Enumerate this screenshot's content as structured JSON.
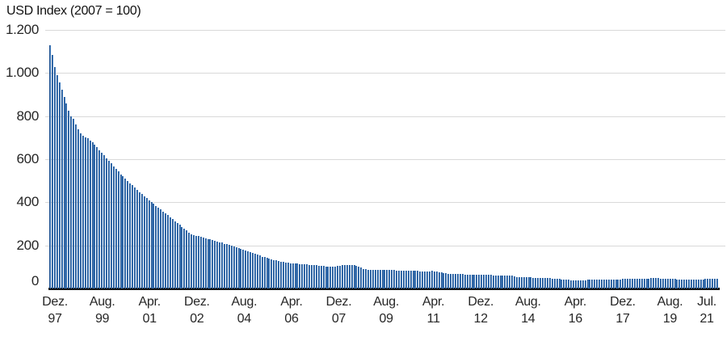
{
  "title": "USD Index (2007 = 100)",
  "colors": {
    "bar_dark": "#0e3a75",
    "bar_mid": "#2a66ad",
    "bar_light": "#6fa5d8",
    "gridline": "#d9d9d9",
    "axis_line": "#141414",
    "text": "#262626"
  },
  "chart_data": {
    "type": "bar",
    "title": "USD Index (2007 = 100)",
    "frequency": "monthly",
    "start": "Dez. 97",
    "end": "Jul. 21",
    "ylim": [
      0,
      1200
    ],
    "y_tick_step": 200,
    "y_tick_labels": [
      "0",
      "200",
      "400",
      "600",
      "800",
      "1.000",
      "1.200"
    ],
    "grid": "horizontal-only",
    "legend": "none",
    "x_ticks": [
      {
        "line1": "Dez.",
        "line2": "97",
        "month": 0
      },
      {
        "line1": "Aug.",
        "line2": "99",
        "month": 20
      },
      {
        "line1": "Apr.",
        "line2": "01",
        "month": 40
      },
      {
        "line1": "Dez.",
        "line2": "02",
        "month": 60
      },
      {
        "line1": "Aug.",
        "line2": "04",
        "month": 80
      },
      {
        "line1": "Apr.",
        "line2": "06",
        "month": 100
      },
      {
        "line1": "Dez.",
        "line2": "07",
        "month": 120
      },
      {
        "line1": "Aug.",
        "line2": "09",
        "month": 140
      },
      {
        "line1": "Apr.",
        "line2": "11",
        "month": 160
      },
      {
        "line1": "Dez.",
        "line2": "12",
        "month": 180
      },
      {
        "line1": "Aug.",
        "line2": "14",
        "month": 200
      },
      {
        "line1": "Apr.",
        "line2": "16",
        "month": 220
      },
      {
        "line1": "Dez.",
        "line2": "17",
        "month": 240
      },
      {
        "line1": "Aug.",
        "line2": "19",
        "month": 260
      },
      {
        "line1": "Jul.",
        "line2": "21",
        "month": 283
      }
    ],
    "values": [
      1130,
      1085,
      1028,
      990,
      955,
      922,
      890,
      858,
      826,
      800,
      786,
      760,
      737,
      720,
      710,
      703,
      696,
      687,
      677,
      666,
      655,
      642,
      630,
      617,
      605,
      592,
      580,
      567,
      555,
      542,
      530,
      520,
      509,
      499,
      489,
      479,
      468,
      458,
      448,
      438,
      428,
      419,
      410,
      401,
      392,
      384,
      375,
      366,
      357,
      349,
      340,
      331,
      322,
      313,
      304,
      295,
      286,
      277,
      269,
      260,
      251,
      248,
      245,
      242,
      239,
      236,
      233,
      230,
      227,
      225,
      222,
      219,
      215,
      212,
      208,
      205,
      202,
      198,
      195,
      191,
      188,
      184,
      180,
      176,
      172,
      168,
      164,
      160,
      156,
      152,
      148,
      145,
      142,
      139,
      136,
      133,
      130,
      127,
      125,
      122,
      120,
      119,
      118,
      117,
      116,
      115,
      114,
      113,
      112,
      111,
      110,
      109,
      108,
      107,
      106,
      105,
      104,
      103,
      102,
      102,
      101,
      103,
      105,
      106,
      108,
      109,
      110,
      110,
      109,
      107,
      105,
      103,
      96,
      90,
      89,
      88,
      88,
      87,
      87,
      86,
      86,
      86,
      86,
      85,
      85,
      85,
      85,
      84,
      84,
      84,
      84,
      83,
      83,
      82,
      82,
      81,
      81,
      80,
      80,
      79,
      79,
      80,
      81,
      80,
      78,
      76,
      74,
      72,
      71,
      69,
      68,
      68,
      67,
      67,
      66,
      66,
      65,
      65,
      64,
      64,
      64,
      64,
      63,
      63,
      63,
      62,
      62,
      62,
      61,
      61,
      61,
      61,
      60,
      60,
      60,
      60,
      60,
      55,
      53,
      52,
      52,
      52,
      51,
      51,
      51,
      50,
      50,
      50,
      49,
      49,
      49,
      48,
      47,
      46,
      46,
      45,
      44,
      43,
      42,
      41,
      40,
      39,
      39,
      38,
      38,
      38,
      39,
      39,
      40,
      40,
      41,
      41,
      42,
      42,
      43,
      43,
      43,
      43,
      43,
      43,
      43,
      43,
      43,
      44,
      44,
      44,
      44,
      44,
      44,
      45,
      45,
      45,
      45,
      46,
      46,
      47,
      47,
      47,
      47,
      46,
      46,
      46,
      45,
      45,
      44,
      44,
      43,
      43,
      43,
      42,
      42,
      42,
      42,
      42,
      42,
      42,
      43,
      43,
      44,
      44,
      45,
      45,
      46,
      46
    ]
  }
}
